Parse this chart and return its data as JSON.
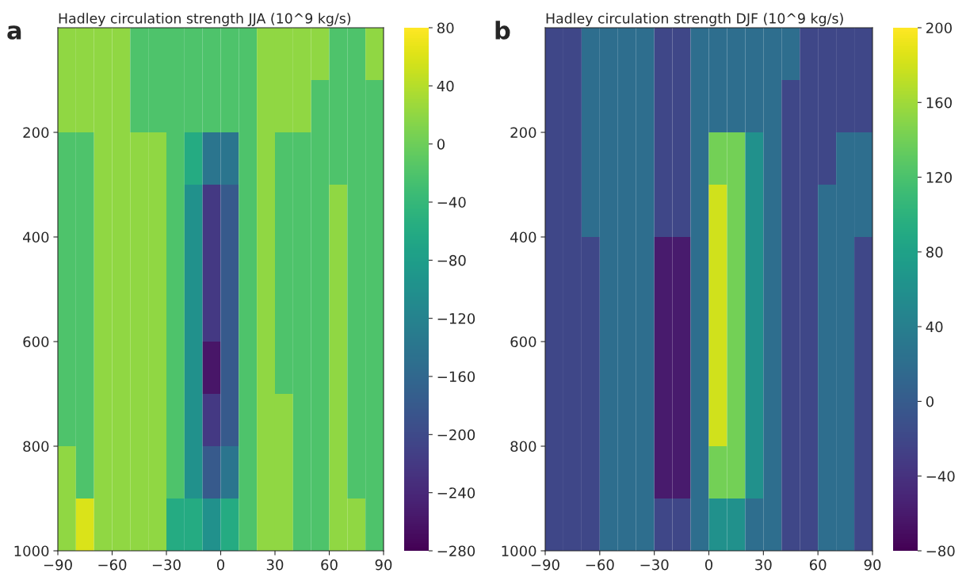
{
  "chart_data": [
    {
      "type": "heatmap",
      "title": "Hadley circulation strength JJA (10^9 kg/s)",
      "annotations": [
        "a"
      ],
      "xlim": [
        -90,
        90
      ],
      "xticks": [
        -90,
        -60,
        -30,
        0,
        30,
        60,
        90
      ],
      "ylim": [
        1000,
        0
      ],
      "yticks": [
        200,
        400,
        600,
        800,
        1000
      ],
      "clim": [
        -280,
        80
      ],
      "cticks": [
        -280,
        -240,
        -200,
        -160,
        -120,
        -80,
        -40,
        0,
        40,
        80
      ],
      "cells": [
        [
          20,
          20,
          20,
          20,
          -20,
          -20,
          -20,
          -20,
          -20,
          -20,
          -20,
          20,
          20,
          20,
          20,
          -20,
          -20,
          20
        ],
        [
          20,
          20,
          20,
          20,
          -20,
          -20,
          -20,
          -20,
          -20,
          -20,
          -20,
          20,
          20,
          20,
          -20,
          -20,
          -20,
          -20
        ],
        [
          -20,
          -20,
          20,
          20,
          20,
          20,
          -20,
          -60,
          -140,
          -140,
          -20,
          20,
          -20,
          -20,
          -20,
          -20,
          -20,
          -20
        ],
        [
          -20,
          -20,
          20,
          20,
          20,
          20,
          -20,
          -100,
          -220,
          -180,
          -20,
          20,
          -20,
          -20,
          -20,
          20,
          -20,
          -20
        ],
        [
          -20,
          -20,
          20,
          20,
          20,
          20,
          -20,
          -100,
          -220,
          -180,
          -20,
          20,
          -20,
          -20,
          -20,
          20,
          -20,
          -20
        ],
        [
          -20,
          -20,
          20,
          20,
          20,
          20,
          -20,
          -100,
          -220,
          -180,
          -20,
          20,
          -20,
          -20,
          -20,
          20,
          -20,
          -20
        ],
        [
          -20,
          -20,
          20,
          20,
          20,
          20,
          -20,
          -100,
          -260,
          -180,
          -20,
          20,
          -20,
          -20,
          -20,
          20,
          -20,
          -20
        ],
        [
          -20,
          -20,
          20,
          20,
          20,
          20,
          -20,
          -100,
          -220,
          -180,
          -20,
          20,
          20,
          -20,
          -20,
          20,
          -20,
          -20
        ],
        [
          20,
          -20,
          20,
          20,
          20,
          20,
          -20,
          -100,
          -180,
          -140,
          -20,
          20,
          20,
          -20,
          -20,
          20,
          -20,
          -20
        ],
        [
          20,
          60,
          20,
          20,
          20,
          20,
          -60,
          -60,
          -100,
          -60,
          -20,
          20,
          20,
          -20,
          -20,
          20,
          20,
          -20
        ]
      ]
    },
    {
      "type": "heatmap",
      "title": "Hadley circulation strength DJF (10^9 kg/s)",
      "annotations": [
        "b"
      ],
      "xlim": [
        -90,
        90
      ],
      "xticks": [
        -90,
        -60,
        -30,
        0,
        30,
        60,
        90
      ],
      "ylim": [
        1000,
        0
      ],
      "yticks": [
        200,
        400,
        600,
        800,
        1000
      ],
      "clim": [
        -80,
        200
      ],
      "cticks": [
        -80,
        -40,
        0,
        40,
        80,
        120,
        160,
        200
      ],
      "cells": [
        [
          -20,
          -20,
          20,
          20,
          20,
          20,
          -20,
          -20,
          20,
          20,
          20,
          20,
          20,
          20,
          -20,
          -20,
          -20,
          -20
        ],
        [
          -20,
          -20,
          20,
          20,
          20,
          20,
          -20,
          -20,
          20,
          20,
          20,
          20,
          20,
          -20,
          -20,
          -20,
          -20,
          -20
        ],
        [
          -20,
          -20,
          20,
          20,
          20,
          20,
          -20,
          -20,
          20,
          140,
          140,
          60,
          20,
          -20,
          -20,
          -20,
          20,
          20
        ],
        [
          -20,
          -20,
          20,
          20,
          20,
          20,
          -20,
          -20,
          20,
          180,
          140,
          60,
          20,
          -20,
          -20,
          20,
          20,
          20
        ],
        [
          -20,
          -20,
          -20,
          20,
          20,
          20,
          -60,
          -60,
          20,
          180,
          140,
          60,
          20,
          -20,
          -20,
          20,
          20,
          -20
        ],
        [
          -20,
          -20,
          -20,
          20,
          20,
          20,
          -60,
          -60,
          20,
          180,
          140,
          60,
          20,
          -20,
          -20,
          20,
          20,
          -20
        ],
        [
          -20,
          -20,
          -20,
          20,
          20,
          20,
          -60,
          -60,
          20,
          180,
          140,
          60,
          20,
          -20,
          -20,
          20,
          20,
          -20
        ],
        [
          -20,
          -20,
          -20,
          20,
          20,
          20,
          -60,
          -60,
          20,
          180,
          140,
          60,
          20,
          -20,
          -20,
          20,
          20,
          -20
        ],
        [
          -20,
          -20,
          -20,
          20,
          20,
          20,
          -60,
          -60,
          20,
          140,
          140,
          60,
          20,
          -20,
          -20,
          20,
          20,
          -20
        ],
        [
          -20,
          -20,
          -20,
          20,
          20,
          20,
          -20,
          -20,
          20,
          60,
          60,
          20,
          20,
          -20,
          -20,
          20,
          20,
          -20
        ]
      ]
    }
  ]
}
